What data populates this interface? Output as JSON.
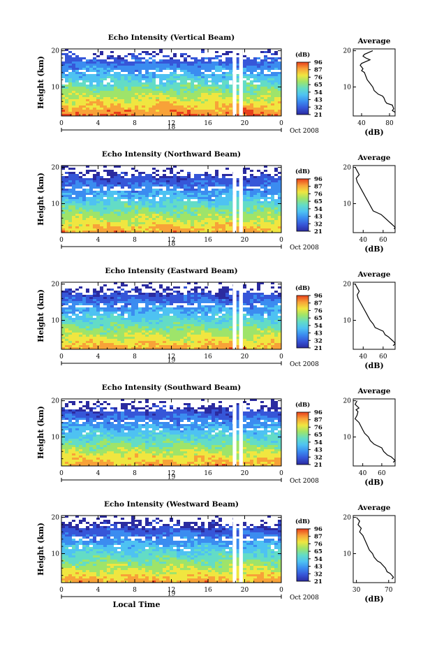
{
  "colors": {
    "colormap": [
      "#2b2ba0",
      "#3656d8",
      "#3b8cf0",
      "#4ec2f2",
      "#63dcc6",
      "#9ee46a",
      "#f0e640",
      "#f8a238",
      "#e8401c"
    ],
    "missing": "#ffffff",
    "profile_line": "#000000"
  },
  "chart_data": [
    {
      "type": "heatmap",
      "title": "Echo Intensity (Vertical Beam)",
      "ylabel": "Height (km)",
      "xlabel": "",
      "x_ticks": [
        "0",
        "4",
        "8",
        "12",
        "16",
        "20",
        "0"
      ],
      "y_ticks": [
        "20",
        "10"
      ],
      "xlim_hours": [
        0,
        24
      ],
      "ylim_km": [
        2,
        20.5
      ],
      "date_day": "18",
      "date_month_year": "Oct 2008",
      "colorbar": {
        "label": "(dB)",
        "ticks": [
          "96",
          "87",
          "76",
          "65",
          "54",
          "43",
          "32",
          "21"
        ]
      },
      "gap_hours": [
        [
          18.7,
          19.1
        ],
        [
          19.4,
          19.8
        ]
      ],
      "profile": {
        "title": "Average",
        "xlabel": "(dB)",
        "x_ticks": [
          "40",
          "80"
        ],
        "x_tick_values": [
          40,
          80
        ],
        "xlim": [
          28,
          88
        ],
        "y_ticks": [
          "20",
          "10"
        ],
        "points": [
          [
            56,
            20
          ],
          [
            50,
            19.5
          ],
          [
            44,
            19
          ],
          [
            42,
            18.5
          ],
          [
            46,
            18
          ],
          [
            52,
            17.5
          ],
          [
            46,
            17
          ],
          [
            40,
            16.5
          ],
          [
            38,
            16
          ],
          [
            40,
            15.5
          ],
          [
            42,
            15
          ],
          [
            40,
            14.5
          ],
          [
            44,
            14
          ],
          [
            46,
            13
          ],
          [
            48,
            12
          ],
          [
            52,
            11
          ],
          [
            56,
            10
          ],
          [
            58,
            9
          ],
          [
            64,
            8
          ],
          [
            70,
            7.5
          ],
          [
            72,
            7
          ],
          [
            74,
            6
          ],
          [
            76,
            5.5
          ],
          [
            84,
            5
          ],
          [
            86,
            4
          ],
          [
            84,
            3.5
          ],
          [
            88,
            3
          ]
        ]
      }
    },
    {
      "type": "heatmap",
      "title": "Echo Intensity (Northward Beam)",
      "ylabel": "Height (km)",
      "xlabel": "",
      "x_ticks": [
        "0",
        "4",
        "8",
        "12",
        "16",
        "20",
        "0"
      ],
      "y_ticks": [
        "20",
        "10"
      ],
      "xlim_hours": [
        0,
        24
      ],
      "ylim_km": [
        2,
        20.5
      ],
      "date_day": "18",
      "date_month_year": "Oct 2008",
      "colorbar": {
        "label": "(dB)",
        "ticks": [
          "96",
          "87",
          "76",
          "65",
          "54",
          "43",
          "32",
          "21"
        ]
      },
      "gap_hours": [
        [
          18.7,
          19.1
        ],
        [
          19.4,
          19.8
        ]
      ],
      "profile": {
        "title": "Average",
        "xlabel": "(dB)",
        "x_ticks": [
          "40",
          "60"
        ],
        "x_tick_values": [
          40,
          60
        ],
        "xlim": [
          30,
          72
        ],
        "y_ticks": [
          "20",
          "10"
        ],
        "points": [
          [
            32,
            20
          ],
          [
            34,
            19
          ],
          [
            36,
            18
          ],
          [
            33,
            17
          ],
          [
            34,
            16
          ],
          [
            36,
            15
          ],
          [
            38,
            14
          ],
          [
            40,
            13
          ],
          [
            42,
            12
          ],
          [
            44,
            11
          ],
          [
            46,
            10
          ],
          [
            48,
            9
          ],
          [
            50,
            8
          ],
          [
            54,
            7.5
          ],
          [
            58,
            7
          ],
          [
            62,
            6
          ],
          [
            64,
            5.5
          ],
          [
            66,
            5
          ],
          [
            68,
            4.5
          ],
          [
            70,
            4
          ],
          [
            72,
            3.5
          ],
          [
            71,
            3
          ]
        ]
      }
    },
    {
      "type": "heatmap",
      "title": "Echo Intensity (Eastward Beam)",
      "ylabel": "Height (km)",
      "xlabel": "",
      "x_ticks": [
        "0",
        "4",
        "8",
        "12",
        "16",
        "20",
        "0"
      ],
      "y_ticks": [
        "20",
        "10"
      ],
      "xlim_hours": [
        0,
        24
      ],
      "ylim_km": [
        2,
        20.5
      ],
      "date_day": "19",
      "date_month_year": "Oct 2008",
      "colorbar": {
        "label": "(dB)",
        "ticks": [
          "96",
          "87",
          "76",
          "65",
          "54",
          "43",
          "32",
          "21"
        ]
      },
      "gap_hours": [
        [
          18.7,
          19.1
        ],
        [
          19.4,
          19.8
        ]
      ],
      "profile": {
        "title": "Average",
        "xlabel": "(dB)",
        "x_ticks": [
          "40",
          "60"
        ],
        "x_tick_values": [
          40,
          60
        ],
        "xlim": [
          30,
          72
        ],
        "y_ticks": [
          "20",
          "10"
        ],
        "points": [
          [
            32,
            20
          ],
          [
            34,
            19
          ],
          [
            36,
            18
          ],
          [
            34,
            17
          ],
          [
            35,
            16
          ],
          [
            37,
            15
          ],
          [
            39,
            14
          ],
          [
            41,
            13
          ],
          [
            43,
            12
          ],
          [
            45,
            11
          ],
          [
            47,
            10
          ],
          [
            50,
            9
          ],
          [
            52,
            8
          ],
          [
            56,
            7.5
          ],
          [
            60,
            7
          ],
          [
            62,
            6
          ],
          [
            65,
            5.5
          ],
          [
            67,
            5
          ],
          [
            69,
            4.5
          ],
          [
            71,
            4
          ],
          [
            72,
            3.5
          ],
          [
            70,
            3
          ]
        ]
      }
    },
    {
      "type": "heatmap",
      "title": "Echo Intensity (Southward Beam)",
      "ylabel": "Height (km)",
      "xlabel": "",
      "x_ticks": [
        "0",
        "4",
        "8",
        "12",
        "16",
        "20",
        "0"
      ],
      "y_ticks": [
        "20",
        "10"
      ],
      "xlim_hours": [
        0,
        24
      ],
      "ylim_km": [
        2,
        20.5
      ],
      "date_day": "19",
      "date_month_year": "Oct 2008",
      "colorbar": {
        "label": "(dB)",
        "ticks": [
          "96",
          "87",
          "76",
          "65",
          "54",
          "43",
          "32",
          "21"
        ]
      },
      "gap_hours": [
        [
          18.7,
          19.1
        ],
        [
          19.4,
          19.8
        ]
      ],
      "profile": {
        "title": "Average",
        "xlabel": "(dB)",
        "x_ticks": [
          "40",
          "60"
        ],
        "x_tick_values": [
          40,
          60
        ],
        "xlim": [
          30,
          74
        ],
        "y_ticks": [
          "20",
          "10"
        ],
        "points": [
          [
            34,
            20
          ],
          [
            32,
            19
          ],
          [
            36,
            18
          ],
          [
            33,
            17.5
          ],
          [
            35,
            17
          ],
          [
            34,
            16
          ],
          [
            32,
            15
          ],
          [
            36,
            14
          ],
          [
            38,
            13
          ],
          [
            40,
            12
          ],
          [
            42,
            11
          ],
          [
            46,
            10
          ],
          [
            48,
            9
          ],
          [
            52,
            8
          ],
          [
            56,
            7.5
          ],
          [
            60,
            7
          ],
          [
            62,
            6
          ],
          [
            66,
            5
          ],
          [
            70,
            4.5
          ],
          [
            72,
            4
          ],
          [
            74,
            3.5
          ],
          [
            72,
            3
          ]
        ]
      }
    },
    {
      "type": "heatmap",
      "title": "Echo Intensity (Westward Beam)",
      "ylabel": "Height (km)",
      "xlabel": "Local Time",
      "x_ticks": [
        "0",
        "4",
        "8",
        "12",
        "16",
        "20",
        "0"
      ],
      "y_ticks": [
        "20",
        "10"
      ],
      "xlim_hours": [
        0,
        24
      ],
      "ylim_km": [
        2,
        20.5
      ],
      "date_day": "19",
      "date_month_year": "Oct 2008",
      "colorbar": {
        "label": "(dB)",
        "ticks": [
          "96",
          "87",
          "76",
          "65",
          "54",
          "43",
          "32",
          "21"
        ]
      },
      "gap_hours": [
        [
          18.7,
          19.1
        ],
        [
          19.4,
          19.8
        ]
      ],
      "profile": {
        "title": "Average",
        "xlabel": "(dB)",
        "x_ticks": [
          "30",
          "70"
        ],
        "x_tick_values": [
          30,
          70
        ],
        "xlim": [
          26,
          78
        ],
        "y_ticks": [
          "20",
          "10"
        ],
        "points": [
          [
            30,
            20
          ],
          [
            34,
            19
          ],
          [
            32,
            18
          ],
          [
            36,
            17
          ],
          [
            34,
            16
          ],
          [
            38,
            15
          ],
          [
            40,
            14
          ],
          [
            42,
            13
          ],
          [
            44,
            12
          ],
          [
            46,
            11
          ],
          [
            50,
            10
          ],
          [
            52,
            9
          ],
          [
            56,
            8
          ],
          [
            60,
            7.5
          ],
          [
            62,
            7
          ],
          [
            66,
            6
          ],
          [
            68,
            5
          ],
          [
            72,
            4.5
          ],
          [
            74,
            4
          ],
          [
            76,
            3.5
          ],
          [
            74,
            3
          ]
        ]
      }
    }
  ]
}
